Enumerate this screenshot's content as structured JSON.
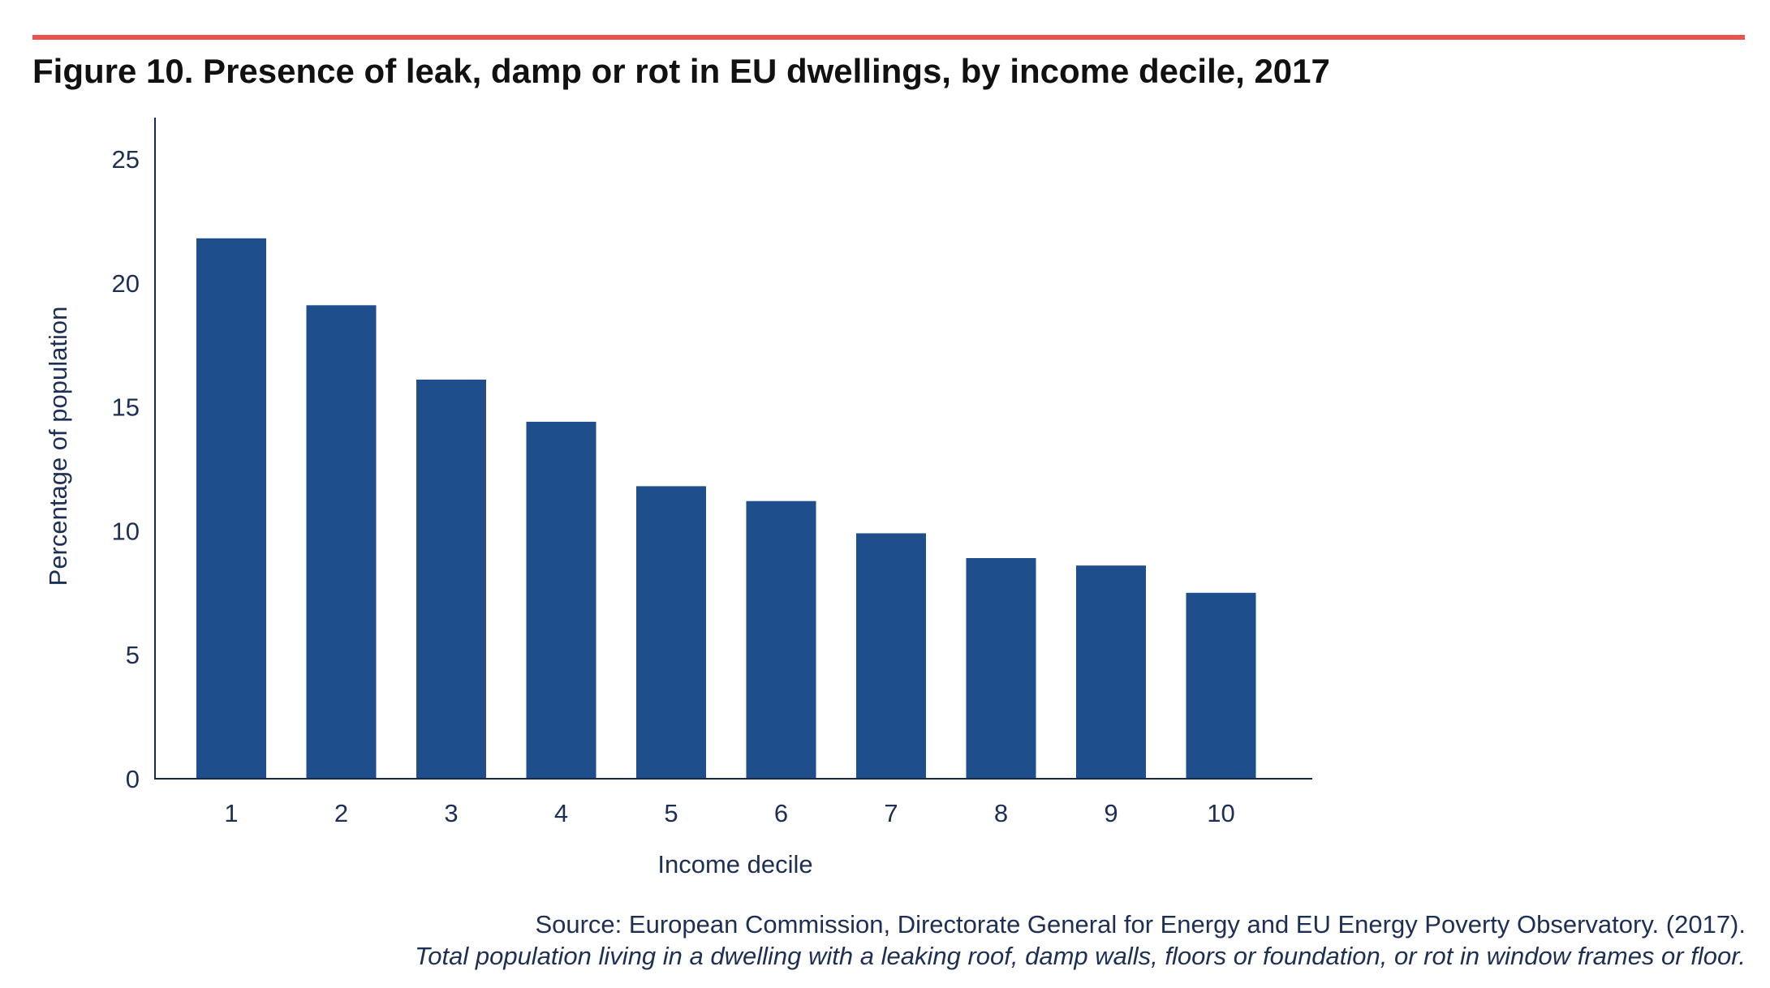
{
  "figure": {
    "title": "Figure 10. Presence of leak, damp or rot in EU dwellings, by income decile, 2017",
    "source": "Source: European Commission, Directorate General for Energy and EU Energy Poverty Observatory. (2017).",
    "note": "Total population living in a dwelling with a leaking roof, damp walls, floors or foundation, or rot in window frames or floor."
  },
  "colors": {
    "accent_rule": "#e8534b",
    "bar": "#1e4e8c",
    "axis": "#1b2a4a",
    "text": "#1e2f55"
  },
  "chart_data": {
    "type": "bar",
    "title": "Figure 10. Presence of leak, damp or rot in EU dwellings, by income decile, 2017",
    "xlabel": "Income decile",
    "ylabel": "Percentage of population",
    "categories": [
      "1",
      "2",
      "3",
      "4",
      "5",
      "6",
      "7",
      "8",
      "9",
      "10"
    ],
    "values": [
      21.8,
      19.1,
      16.1,
      14.4,
      11.8,
      11.2,
      9.9,
      8.9,
      8.6,
      7.5
    ],
    "ylim": [
      0,
      25
    ],
    "yticks": [
      0,
      5,
      10,
      15,
      20,
      25
    ],
    "grid": false,
    "legend": "none"
  }
}
